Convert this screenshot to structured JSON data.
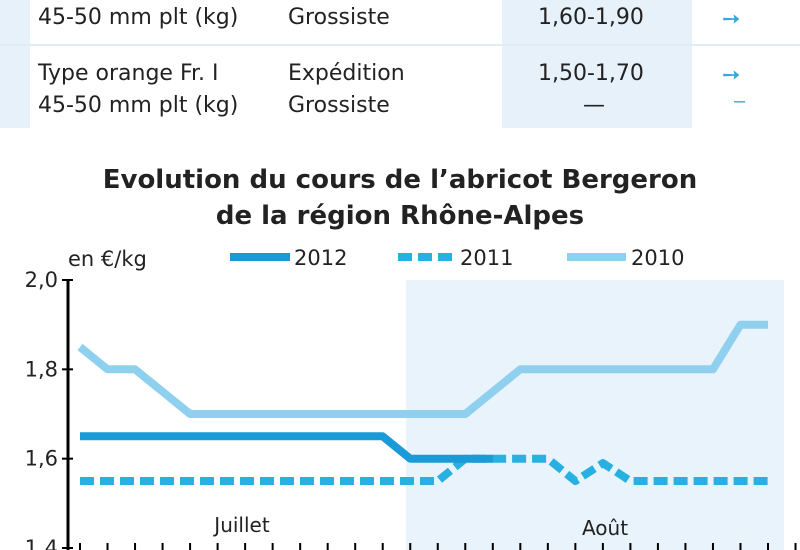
{
  "table": {
    "rows": [
      {
        "product_lines": [
          "",
          "45-50 mm plt (kg)"
        ],
        "stage_lines": [
          "Grossiste"
        ],
        "prices": [
          "1,60-1,90"
        ],
        "trends": [
          "right-arrow-icon"
        ]
      },
      {
        "product_lines": [
          "Type orange Fr. I",
          "45-50 mm plt (kg)"
        ],
        "stage_lines": [
          "Expédition",
          "Grossiste"
        ],
        "prices": [
          "1,50-1,70",
          "—"
        ],
        "trends": [
          "right-arrow-icon",
          "stable-dash-icon"
        ]
      }
    ]
  },
  "chart_data": {
    "type": "line",
    "title": "Evolution du cours de l’abricot Bergeron",
    "subtitle": "de la région Rhône-Alpes",
    "ylabel": "en €/kg",
    "ylim": [
      1.4,
      2.0
    ],
    "yticks": [
      "2,0",
      "1,8",
      "1,6",
      "1,4"
    ],
    "ytick_values": [
      2.0,
      1.8,
      1.6,
      1.4
    ],
    "period_labels": [
      "Juillet",
      "Août"
    ],
    "grid": false,
    "legend_position": "top",
    "colors": {
      "2012": "#1a9ad6",
      "2011": "#27b0e0",
      "2010": "#8fd0ef",
      "period_band": "#e8f3fb"
    },
    "days": 26,
    "x": [
      1,
      2,
      3,
      4,
      5,
      6,
      7,
      8,
      9,
      10,
      11,
      12,
      13,
      14,
      15,
      16,
      17,
      18,
      19,
      20,
      21,
      22,
      23,
      24,
      25,
      26
    ],
    "series": [
      {
        "name": "2012",
        "style": "solid",
        "x": [
          1,
          2,
          3,
          4,
          5,
          6,
          7,
          8,
          9,
          10,
          11,
          12,
          13,
          14,
          15,
          16
        ],
        "values": [
          1.65,
          1.65,
          1.65,
          1.65,
          1.65,
          1.65,
          1.65,
          1.65,
          1.65,
          1.65,
          1.65,
          1.65,
          1.6,
          1.6,
          1.6,
          1.6
        ]
      },
      {
        "name": "2011",
        "style": "dashed",
        "x": [
          1,
          2,
          3,
          4,
          5,
          6,
          7,
          8,
          9,
          10,
          11,
          12,
          13,
          14,
          15,
          16,
          17,
          18,
          19,
          20,
          21,
          22,
          23,
          24,
          25,
          26
        ],
        "values": [
          1.55,
          1.55,
          1.55,
          1.55,
          1.55,
          1.55,
          1.55,
          1.55,
          1.55,
          1.55,
          1.55,
          1.55,
          1.55,
          1.55,
          1.6,
          1.6,
          1.6,
          1.6,
          1.55,
          1.59,
          1.55,
          1.55,
          1.55,
          1.55,
          1.55,
          1.55
        ]
      },
      {
        "name": "2010",
        "style": "solid-light",
        "x": [
          1,
          2,
          3,
          4,
          5,
          6,
          7,
          8,
          9,
          10,
          11,
          12,
          13,
          14,
          15,
          16,
          17,
          18,
          19,
          20,
          21,
          22,
          23,
          24,
          25,
          26
        ],
        "values": [
          1.85,
          1.8,
          1.8,
          1.75,
          1.7,
          1.7,
          1.7,
          1.7,
          1.7,
          1.7,
          1.7,
          1.7,
          1.7,
          1.7,
          1.7,
          1.75,
          1.8,
          1.8,
          1.8,
          1.8,
          1.8,
          1.8,
          1.8,
          1.8,
          1.9,
          1.9
        ]
      }
    ]
  }
}
